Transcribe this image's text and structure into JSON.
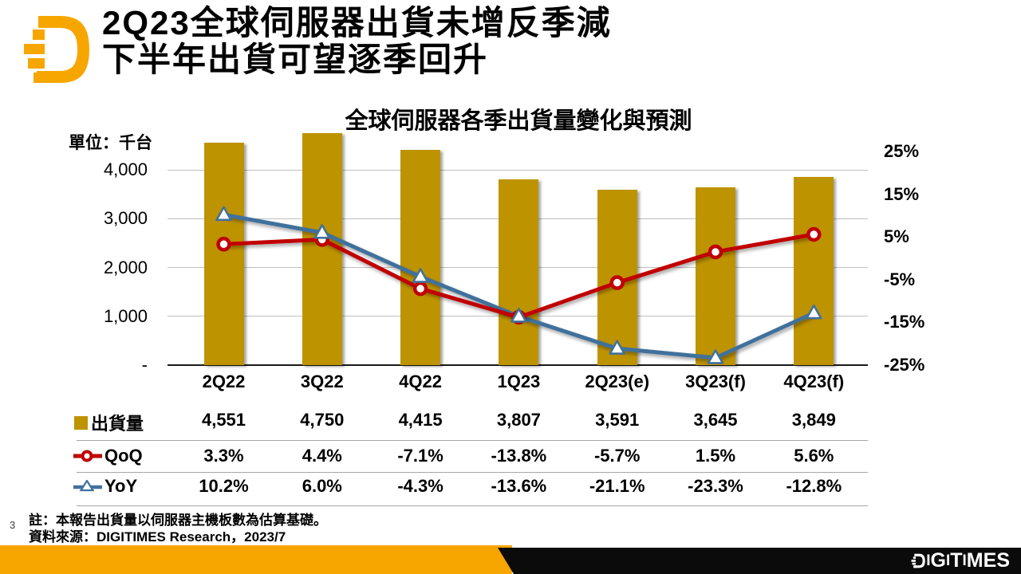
{
  "slide": {
    "title_line1": "2Q23全球伺服器出貨未增反季減",
    "title_line2": "下半年出貨可望逐季回升",
    "page_number": "3",
    "note_line1": "註：本報告出貨量以伺服器主機板數為估算基礎。",
    "note_line2": "資料來源：DIGITIMES Research，2023/7",
    "footer_brand": "DIGITIMES",
    "accent_orange": "#F7A600",
    "footer_black": "#0B0B0B"
  },
  "chart_data": {
    "type": "bar",
    "subtype": "bar-line-combo",
    "title": "全球伺服器各季出貨量變化與預測",
    "unit_label": "單位：千台",
    "categories": [
      "2Q22",
      "3Q22",
      "4Q22",
      "1Q23",
      "2Q23(e)",
      "3Q23(f)",
      "4Q23(f)"
    ],
    "series": [
      {
        "name": "出貨量",
        "type": "bar",
        "axis": "left",
        "color": "#BE9300",
        "marker": "square",
        "values": [
          4551,
          4750,
          4415,
          3807,
          3591,
          3645,
          3849
        ],
        "display": [
          "4,551",
          "4,750",
          "4,415",
          "3,807",
          "3,591",
          "3,645",
          "3,849"
        ]
      },
      {
        "name": "QoQ",
        "type": "line",
        "axis": "right",
        "color": "#C00000",
        "marker": "circle",
        "values": [
          3.3,
          4.4,
          -7.1,
          -13.8,
          -5.7,
          1.5,
          5.6
        ],
        "display": [
          "3.3%",
          "4.4%",
          "-7.1%",
          "-13.8%",
          "-5.7%",
          "1.5%",
          "5.6%"
        ]
      },
      {
        "name": "YoY",
        "type": "line",
        "axis": "right",
        "color": "#41719C",
        "marker": "triangle",
        "values": [
          10.2,
          6.0,
          -4.3,
          -13.6,
          -21.1,
          -23.3,
          -12.8
        ],
        "display": [
          "10.2%",
          "6.0%",
          "-4.3%",
          "-13.6%",
          "-21.1%",
          "-23.3%",
          "-12.8%"
        ]
      }
    ],
    "left_axis": {
      "ticks": [
        {
          "label": "4,000",
          "value": 4000
        },
        {
          "label": "3,000",
          "value": 3000
        },
        {
          "label": "2,000",
          "value": 2000
        },
        {
          "label": "1,000",
          "value": 1000
        },
        {
          "label": "-",
          "value": 0
        }
      ],
      "min": 0,
      "max": 4000
    },
    "right_axis": {
      "ticks": [
        {
          "label": "25%",
          "value": 25
        },
        {
          "label": "15%",
          "value": 15
        },
        {
          "label": "5%",
          "value": 5
        },
        {
          "label": "-5%",
          "value": -5
        },
        {
          "label": "-15%",
          "value": -15
        },
        {
          "label": "-25%",
          "value": -25
        }
      ],
      "min": -25,
      "max": 25
    },
    "grid": true,
    "legend_position": "table-left"
  }
}
